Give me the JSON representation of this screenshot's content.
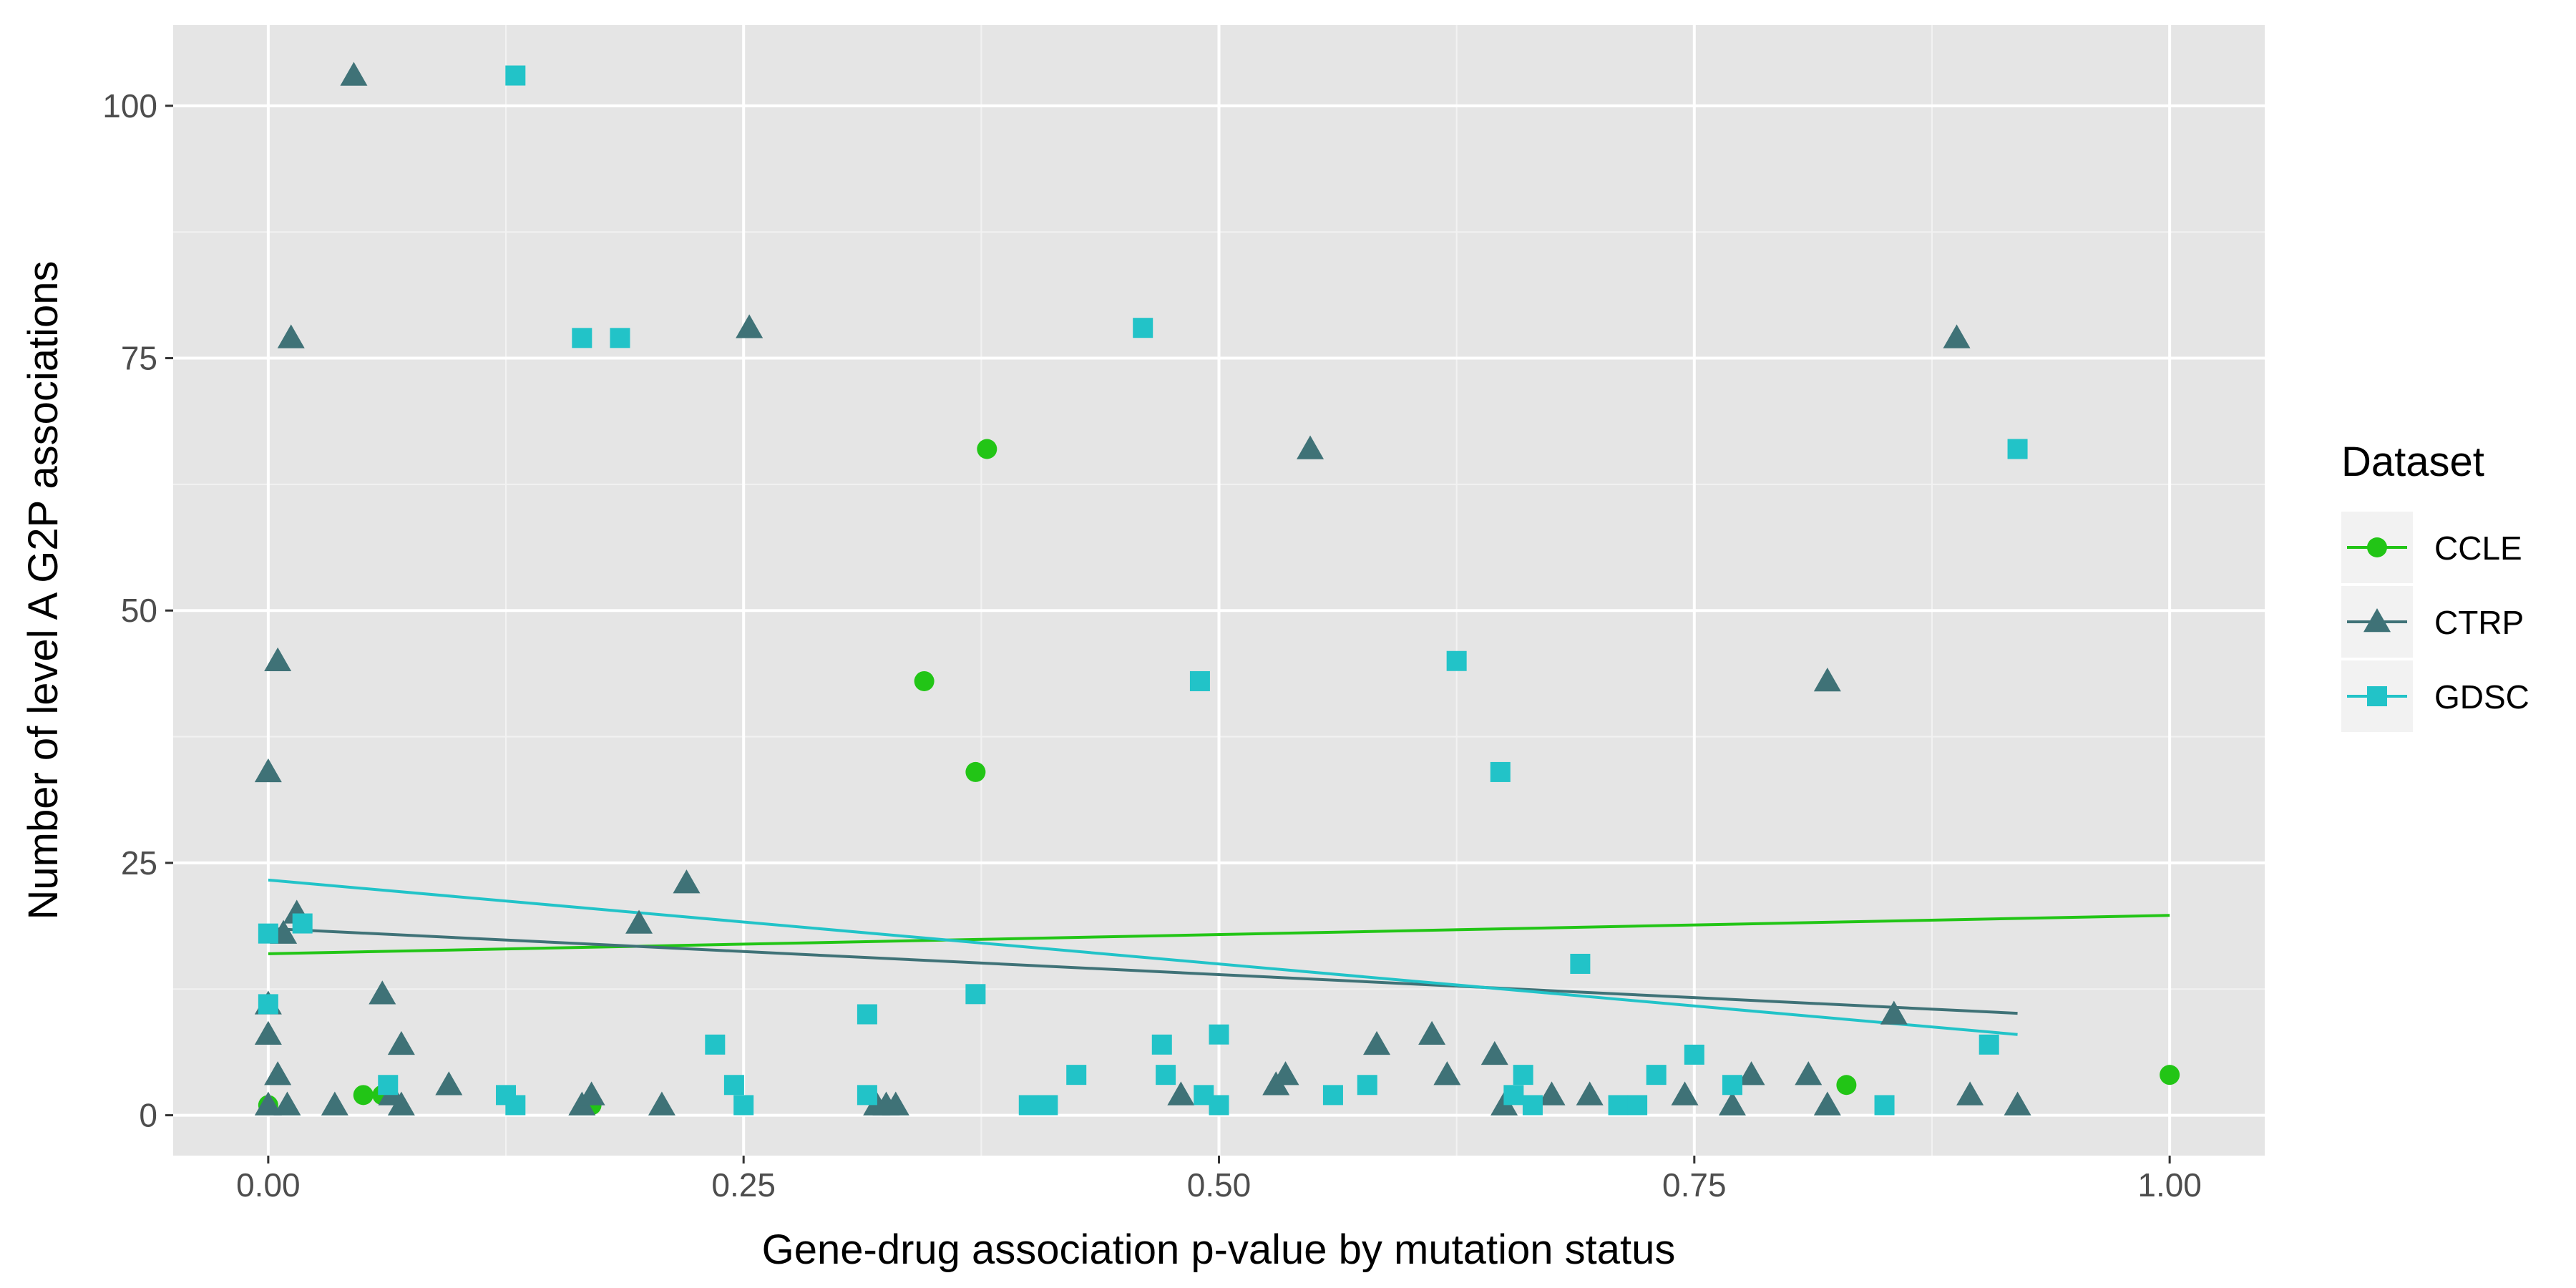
{
  "chart_data": {
    "type": "scatter",
    "xlabel": "Gene-drug association p-value by mutation status",
    "ylabel": "Number of level A G2P associations",
    "xlim": [
      -0.05,
      1.05
    ],
    "ylim": [
      -4,
      108
    ],
    "x_ticks": [
      0,
      0.25,
      0.5,
      0.75,
      1.0
    ],
    "x_tick_labels": [
      "0.00",
      "0.25",
      "0.50",
      "0.75",
      "1.00"
    ],
    "y_ticks": [
      0,
      25,
      50,
      75,
      100
    ],
    "y_tick_labels": [
      "0",
      "25",
      "50",
      "75",
      "100"
    ],
    "grid": true,
    "legend": {
      "title": "Dataset",
      "placement": "right"
    },
    "series": [
      {
        "name": "CCLE",
        "color": "#22c516",
        "marker": "circle",
        "points": [
          [
            0.0,
            1
          ],
          [
            0.05,
            2
          ],
          [
            0.06,
            2
          ],
          [
            0.17,
            1
          ],
          [
            0.345,
            43
          ],
          [
            0.372,
            34
          ],
          [
            0.378,
            66
          ],
          [
            0.83,
            3
          ],
          [
            1.0,
            4
          ]
        ],
        "trend": [
          [
            0.0,
            16.0
          ],
          [
            1.0,
            19.8
          ]
        ]
      },
      {
        "name": "CTRP",
        "color": "#3f7277",
        "marker": "triangle",
        "points": [
          [
            0.0,
            1
          ],
          [
            0.0,
            8
          ],
          [
            0.0,
            11
          ],
          [
            0.0,
            34
          ],
          [
            0.005,
            45
          ],
          [
            0.005,
            4
          ],
          [
            0.008,
            18
          ],
          [
            0.01,
            1
          ],
          [
            0.012,
            77
          ],
          [
            0.015,
            20
          ],
          [
            0.035,
            1
          ],
          [
            0.045,
            103
          ],
          [
            0.06,
            12
          ],
          [
            0.065,
            2
          ],
          [
            0.07,
            1
          ],
          [
            0.07,
            7
          ],
          [
            0.095,
            3
          ],
          [
            0.165,
            1
          ],
          [
            0.17,
            2
          ],
          [
            0.195,
            19
          ],
          [
            0.207,
            1
          ],
          [
            0.22,
            23
          ],
          [
            0.253,
            78
          ],
          [
            0.32,
            1
          ],
          [
            0.325,
            1
          ],
          [
            0.33,
            1
          ],
          [
            0.48,
            2
          ],
          [
            0.53,
            3
          ],
          [
            0.535,
            4
          ],
          [
            0.548,
            66
          ],
          [
            0.583,
            7
          ],
          [
            0.612,
            8
          ],
          [
            0.62,
            4
          ],
          [
            0.645,
            6
          ],
          [
            0.65,
            1
          ],
          [
            0.675,
            2
          ],
          [
            0.695,
            2
          ],
          [
            0.745,
            2
          ],
          [
            0.77,
            1
          ],
          [
            0.78,
            4
          ],
          [
            0.81,
            4
          ],
          [
            0.82,
            43
          ],
          [
            0.82,
            1
          ],
          [
            0.855,
            10
          ],
          [
            0.888,
            77
          ],
          [
            0.895,
            2
          ],
          [
            0.92,
            1
          ]
        ],
        "trend": [
          [
            0.0,
            18.5
          ],
          [
            0.92,
            10.1
          ]
        ]
      },
      {
        "name": "GDSC",
        "color": "#22c3c8",
        "marker": "square",
        "points": [
          [
            0.0,
            18
          ],
          [
            0.0,
            11
          ],
          [
            0.018,
            19
          ],
          [
            0.063,
            3
          ],
          [
            0.125,
            2
          ],
          [
            0.13,
            1
          ],
          [
            0.13,
            103
          ],
          [
            0.165,
            77
          ],
          [
            0.185,
            77
          ],
          [
            0.235,
            7
          ],
          [
            0.245,
            3
          ],
          [
            0.25,
            1
          ],
          [
            0.315,
            10
          ],
          [
            0.315,
            2
          ],
          [
            0.372,
            12
          ],
          [
            0.4,
            1
          ],
          [
            0.41,
            1
          ],
          [
            0.425,
            4
          ],
          [
            0.46,
            78
          ],
          [
            0.47,
            7
          ],
          [
            0.472,
            4
          ],
          [
            0.49,
            43
          ],
          [
            0.492,
            2
          ],
          [
            0.5,
            8
          ],
          [
            0.5,
            1
          ],
          [
            0.56,
            2
          ],
          [
            0.578,
            3
          ],
          [
            0.625,
            45
          ],
          [
            0.648,
            34
          ],
          [
            0.655,
            2
          ],
          [
            0.66,
            4
          ],
          [
            0.665,
            1
          ],
          [
            0.69,
            15
          ],
          [
            0.71,
            1
          ],
          [
            0.72,
            1
          ],
          [
            0.73,
            4
          ],
          [
            0.75,
            6
          ],
          [
            0.77,
            3
          ],
          [
            0.85,
            1
          ],
          [
            0.905,
            7
          ],
          [
            0.92,
            66
          ]
        ],
        "trend": [
          [
            0.0,
            23.3
          ],
          [
            0.92,
            8.0
          ]
        ]
      }
    ]
  }
}
